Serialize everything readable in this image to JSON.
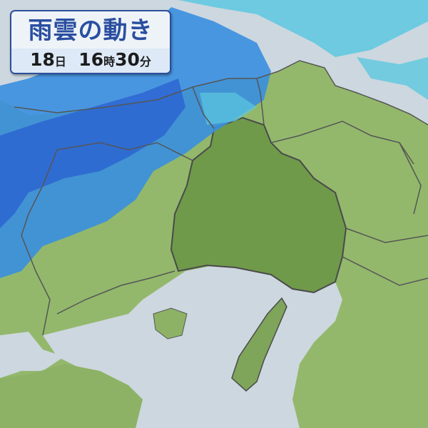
{
  "header": {
    "title": "雨雲の動き",
    "day": "18",
    "day_unit": "日",
    "hour": "16",
    "hour_unit": "時",
    "minute": "30",
    "minute_unit": "分"
  },
  "colors": {
    "sea": "#cdd7df",
    "land": "#93b86c",
    "land_dark": "#6f9a4a",
    "rain_light": "#5cc8e0",
    "rain_mid": "#3a8fe0",
    "rain_heavy": "#2a5fd0",
    "border": "#4a4a4a",
    "title_text": "#2a4fa0"
  }
}
